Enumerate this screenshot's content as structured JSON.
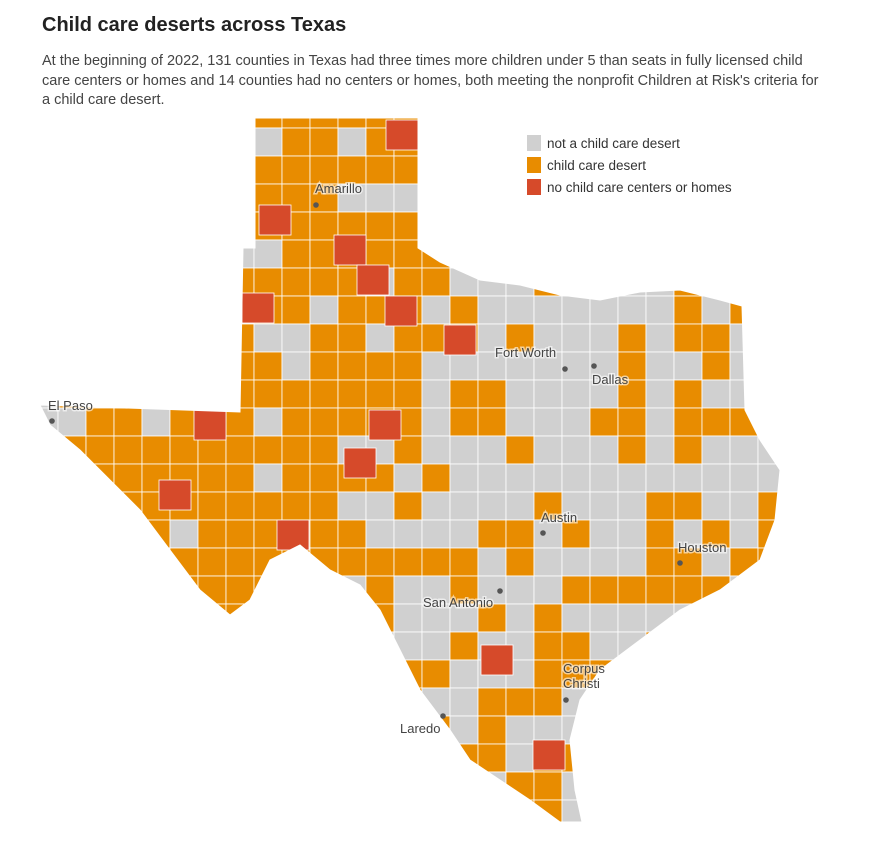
{
  "title": "Child care deserts across Texas",
  "subtitle": "At the beginning of 2022, 131 counties in Texas had three times more children under 5 than seats in fully licensed child care centers or homes and 14 counties had no centers or homes, both meeting the nonprofit Children at Risk's criteria for a child care desert.",
  "summary": {
    "desert_counties": 131,
    "no_center_counties": 14
  },
  "legend": [
    {
      "label": "not a child care desert",
      "color": "#d0d0d0"
    },
    {
      "label": "child care desert",
      "color": "#e88c00"
    },
    {
      "label": "no child care centers or homes",
      "color": "#d64a2a"
    }
  ],
  "cities": [
    {
      "name": "Amarillo"
    },
    {
      "name": "Fort Worth"
    },
    {
      "name": "Dallas"
    },
    {
      "name": "El Paso"
    },
    {
      "name": "Austin"
    },
    {
      "name": "Houston"
    },
    {
      "name": "San Antonio"
    },
    {
      "name": "Corpus Christi"
    },
    {
      "name": "Laredo"
    }
  ]
}
